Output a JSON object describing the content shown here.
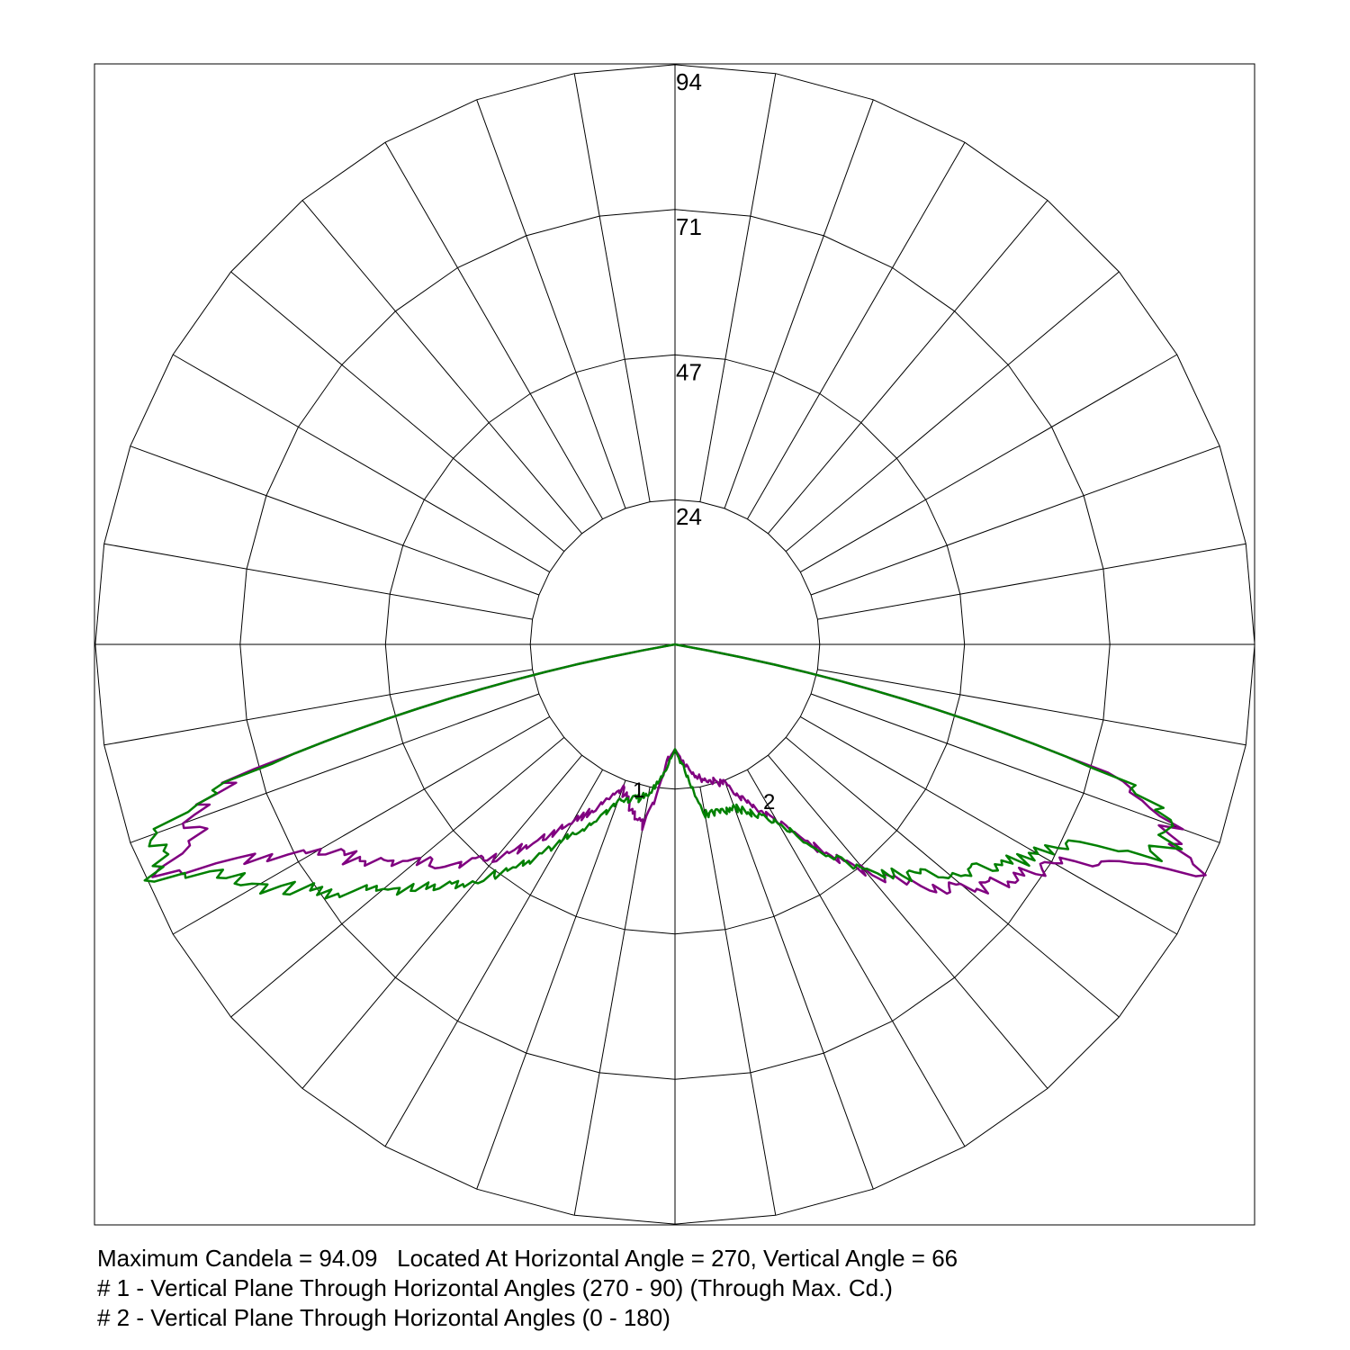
{
  "chart_data": {
    "type": "polar",
    "radial_ticks": [
      "24",
      "47",
      "71",
      "94"
    ],
    "radial_tick_values": [
      23.5,
      47.0,
      70.6,
      94.1
    ],
    "radial_max": 94.09,
    "angle_grid_step_deg": 10,
    "angle_convention": "vertical angle from nadir; left half = plane #1 side (270), right half = plane #2 side (90/180)",
    "series": [
      {
        "name": "1",
        "color": "#800080",
        "left_points": [
          [
            0,
            17
          ],
          [
            4,
            19
          ],
          [
            10,
            30
          ],
          [
            20,
            25
          ],
          [
            30,
            33
          ],
          [
            40,
            45
          ],
          [
            50,
            55
          ],
          [
            60,
            67
          ],
          [
            64,
            80
          ],
          [
            66,
            94.09
          ],
          [
            68,
            83
          ],
          [
            70,
            85
          ],
          [
            73,
            75
          ],
          [
            80,
            0
          ]
        ],
        "right_points": [
          [
            0,
            17
          ],
          [
            4,
            19
          ],
          [
            10,
            22
          ],
          [
            20,
            24
          ],
          [
            30,
            33
          ],
          [
            40,
            48
          ],
          [
            50,
            62
          ],
          [
            60,
            71
          ],
          [
            64,
            80
          ],
          [
            66,
            93.5
          ],
          [
            68,
            87
          ],
          [
            70,
            86
          ],
          [
            73,
            77
          ],
          [
            80,
            0
          ]
        ]
      },
      {
        "name": "2",
        "color": "#008000",
        "left_points": [
          [
            0,
            17
          ],
          [
            4,
            20
          ],
          [
            10,
            25
          ],
          [
            20,
            27
          ],
          [
            30,
            37
          ],
          [
            40,
            50
          ],
          [
            50,
            62
          ],
          [
            60,
            78
          ],
          [
            64,
            85
          ],
          [
            66,
            93
          ],
          [
            68,
            90
          ],
          [
            70,
            91
          ],
          [
            73,
            75
          ],
          [
            80,
            0
          ]
        ],
        "right_points": [
          [
            0,
            17
          ],
          [
            4,
            20
          ],
          [
            10,
            28
          ],
          [
            20,
            28
          ],
          [
            30,
            33
          ],
          [
            40,
            48
          ],
          [
            50,
            58
          ],
          [
            60,
            68
          ],
          [
            64,
            74
          ],
          [
            66,
            84
          ],
          [
            68,
            87
          ],
          [
            70,
            86
          ],
          [
            73,
            77
          ],
          [
            80,
            0
          ]
        ]
      }
    ],
    "curve_labels": [
      {
        "text": "1",
        "series": "1"
      },
      {
        "text": "2",
        "series": "2"
      }
    ]
  },
  "caption": {
    "line1": "Maximum Candela = 94.09   Located At Horizontal Angle = 270, Vertical Angle = 66",
    "line2": "# 1 - Vertical Plane Through Horizontal Angles (270 - 90) (Through Max. Cd.)",
    "line3": "# 2 - Vertical Plane Through Horizontal Angles (0 - 180)"
  }
}
